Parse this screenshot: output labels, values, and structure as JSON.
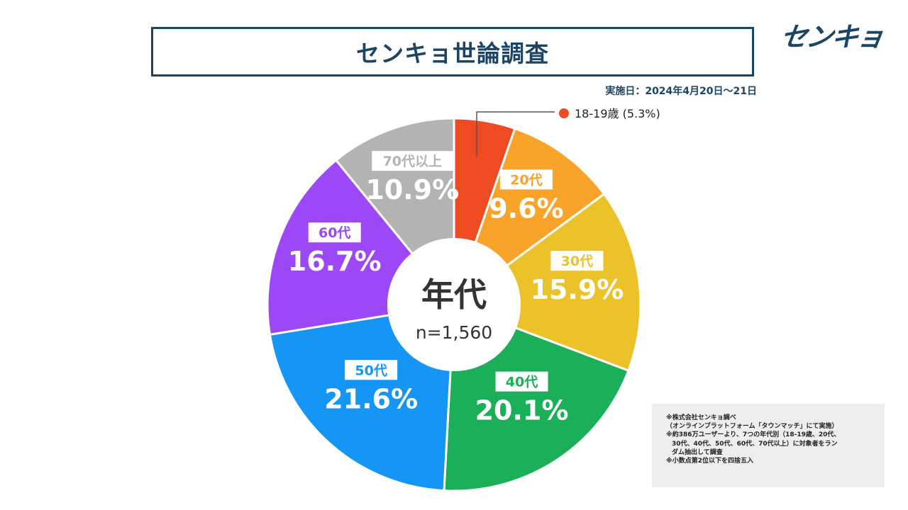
{
  "header": {
    "title": "センキョ世論調査",
    "logo_text": "センキョ",
    "date": "実施日：2024年4月20日～21日"
  },
  "center": {
    "label": "年代",
    "n": "n=1,560"
  },
  "chart_data": {
    "type": "pie",
    "title": "センキョ世論調査",
    "categories": [
      "18-19歳",
      "20代",
      "30代",
      "40代",
      "50代",
      "60代",
      "70代以上"
    ],
    "values": [
      5.3,
      9.6,
      15.9,
      20.1,
      21.6,
      16.7,
      10.9
    ],
    "labels_pct": [
      "5.3%",
      "9.6%",
      "15.9%",
      "20.1%",
      "21.6%",
      "16.7%",
      "10.9%"
    ],
    "colors": [
      "#ee4b23",
      "#f8a32a",
      "#ecc22a",
      "#1caf5a",
      "#1595f4",
      "#9d48f6",
      "#b3b3b3"
    ],
    "callout": "18-19歳 (5.3%)",
    "legend_position": "outside-callout"
  },
  "notes": [
    "※株式会社センキョ調べ",
    "（オンラインプラットフォーム「タウンマッチ」にて実施）",
    "※約386万ユーザーより、7つの年代別（18-19歳、20代、",
    "30代、40代、50代、60代、70代以上）に対象者をラン",
    "ダム抽出して調査",
    "※小数点第2位以下を四捨五入"
  ]
}
